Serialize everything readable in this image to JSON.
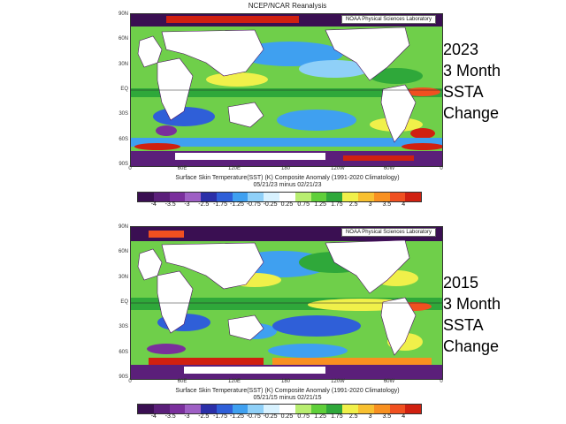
{
  "figure_title": "NCEP/NCAR Reanalysis",
  "lab_badge": "NOAA Physical Sciences Laboratory",
  "latitude_labels": [
    "90N",
    "60N",
    "30N",
    "EQ",
    "30S",
    "60S",
    "90S"
  ],
  "longitude_labels": [
    "0",
    "60E",
    "120E",
    "180",
    "120W",
    "60W",
    "0"
  ],
  "colorbar_ticks": [
    "-4",
    "-3.5",
    "-3",
    "-2.5",
    "-1.75",
    "-1.25",
    "-0.75",
    "-0.25",
    "0.25",
    "0.75",
    "1.25",
    "1.75",
    "2.5",
    "3",
    "3.5",
    "4"
  ],
  "colorbar_colors": [
    "#3a0f52",
    "#5b1f7a",
    "#7a2f9c",
    "#9e5fc4",
    "#2b2fa8",
    "#2f5fd8",
    "#3fa0f0",
    "#8fd0f8",
    "#d8f2ff",
    "#ffffff",
    "#b8ee70",
    "#5fcf3a",
    "#2fa83a",
    "#f0f04a",
    "#f8c030",
    "#f89020",
    "#f05020",
    "#d02010"
  ],
  "panels": [
    {
      "caption_line1": "Surface Skin Temperature(SST) (K) Composite Anomaly (1991-2020 Climatology)",
      "caption_line2": "05/21/23 minus 02/21/23",
      "side_label_line1": "2023",
      "side_label_line2": "3 Month",
      "side_label_line3": "SSTA",
      "side_label_line4": "Change"
    },
    {
      "caption_line1": "Surface Skin Temperature(SST) (K) Composite Anomaly (1991-2020 Climatology)",
      "caption_line2": "05/21/15 minus 02/21/15",
      "side_label_line1": "2015",
      "side_label_line2": "3 Month",
      "side_label_line3": "SSTA",
      "side_label_line4": "Change"
    }
  ]
}
